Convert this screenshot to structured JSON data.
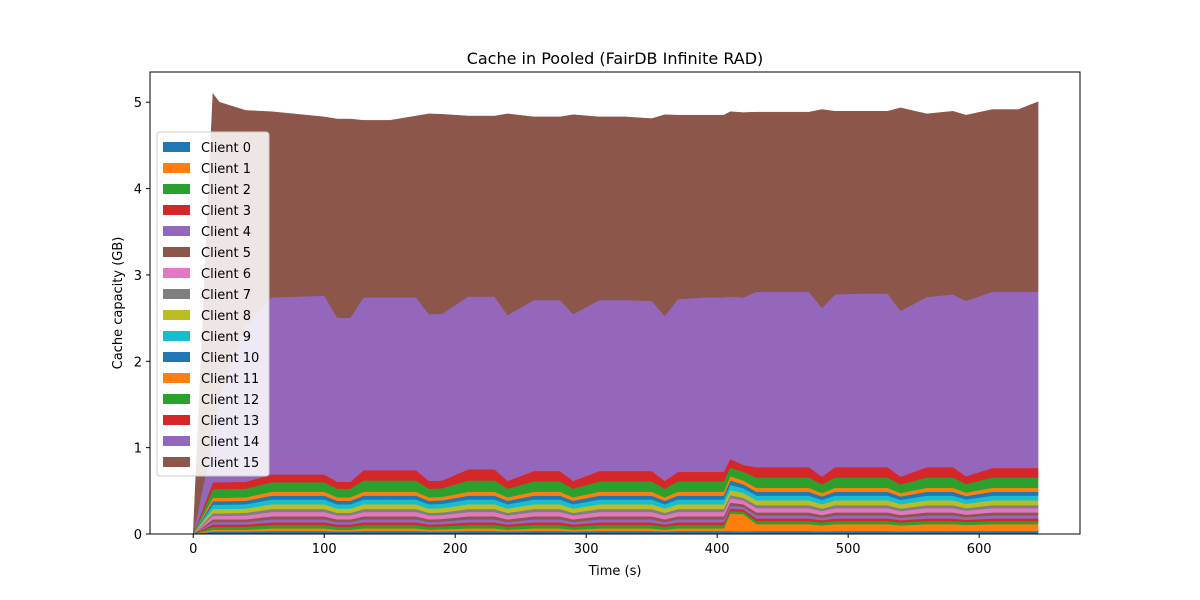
{
  "chart_data": {
    "type": "area",
    "stacked": true,
    "title": "Cache in  Pooled (FairDB Infinite RAD)",
    "xlabel": "Time (s)",
    "ylabel": "Cache capacity (GB)",
    "xlim": [
      -33,
      677
    ],
    "ylim": [
      0,
      5.35
    ],
    "xticks": [
      0,
      100,
      200,
      300,
      400,
      500,
      600
    ],
    "yticks": [
      0,
      1,
      2,
      3,
      4,
      5
    ],
    "grid": false,
    "legend_position": "upper-left",
    "x": [
      0,
      15,
      20,
      40,
      60,
      100,
      110,
      120,
      130,
      150,
      170,
      180,
      190,
      210,
      230,
      240,
      260,
      280,
      290,
      310,
      330,
      350,
      360,
      370,
      390,
      405,
      410,
      420,
      430,
      450,
      470,
      480,
      490,
      510,
      530,
      540,
      560,
      580,
      590,
      610,
      630,
      645
    ],
    "series": [
      {
        "name": "Client 0",
        "color": "#1f77b4",
        "values": [
          0,
          0.03,
          0.03,
          0.03,
          0.035,
          0.035,
          0.03,
          0.03,
          0.035,
          0.035,
          0.035,
          0.03,
          0.03,
          0.035,
          0.035,
          0.03,
          0.035,
          0.035,
          0.03,
          0.035,
          0.035,
          0.035,
          0.03,
          0.035,
          0.035,
          0.035,
          0.035,
          0.03,
          0.035,
          0.035,
          0.035,
          0.03,
          0.035,
          0.035,
          0.035,
          0.03,
          0.035,
          0.035,
          0.035,
          0.035,
          0.035,
          0.035
        ]
      },
      {
        "name": "Client 1",
        "color": "#ff7f0e",
        "values": [
          0,
          0.02,
          0.02,
          0.02,
          0.03,
          0.03,
          0.02,
          0.02,
          0.03,
          0.03,
          0.03,
          0.02,
          0.025,
          0.03,
          0.03,
          0.02,
          0.03,
          0.03,
          0.02,
          0.03,
          0.03,
          0.03,
          0.02,
          0.03,
          0.03,
          0.03,
          0.2,
          0.2,
          0.08,
          0.08,
          0.08,
          0.07,
          0.08,
          0.08,
          0.08,
          0.07,
          0.08,
          0.08,
          0.07,
          0.08,
          0.08,
          0.08
        ]
      },
      {
        "name": "Client 2",
        "color": "#2ca02c",
        "values": [
          0,
          0.035,
          0.035,
          0.035,
          0.04,
          0.04,
          0.035,
          0.035,
          0.04,
          0.04,
          0.04,
          0.035,
          0.035,
          0.04,
          0.04,
          0.035,
          0.04,
          0.04,
          0.035,
          0.04,
          0.04,
          0.04,
          0.035,
          0.04,
          0.04,
          0.04,
          0.03,
          0.03,
          0.035,
          0.035,
          0.035,
          0.035,
          0.035,
          0.035,
          0.035,
          0.035,
          0.035,
          0.035,
          0.035,
          0.035,
          0.035,
          0.035
        ]
      },
      {
        "name": "Client 3",
        "color": "#d62728",
        "values": [
          0,
          0.025,
          0.025,
          0.025,
          0.03,
          0.03,
          0.025,
          0.025,
          0.03,
          0.03,
          0.03,
          0.025,
          0.025,
          0.03,
          0.03,
          0.025,
          0.03,
          0.03,
          0.025,
          0.03,
          0.03,
          0.03,
          0.025,
          0.03,
          0.03,
          0.03,
          0.03,
          0.025,
          0.03,
          0.03,
          0.03,
          0.025,
          0.03,
          0.03,
          0.03,
          0.025,
          0.03,
          0.03,
          0.025,
          0.03,
          0.03,
          0.03
        ]
      },
      {
        "name": "Client 4",
        "color": "#9467bd",
        "values": [
          0,
          0.03,
          0.03,
          0.03,
          0.035,
          0.035,
          0.03,
          0.03,
          0.035,
          0.035,
          0.035,
          0.03,
          0.03,
          0.035,
          0.035,
          0.03,
          0.035,
          0.035,
          0.03,
          0.035,
          0.035,
          0.035,
          0.03,
          0.035,
          0.035,
          0.035,
          0.035,
          0.03,
          0.035,
          0.035,
          0.035,
          0.03,
          0.035,
          0.035,
          0.035,
          0.03,
          0.035,
          0.035,
          0.03,
          0.035,
          0.035,
          0.035
        ]
      },
      {
        "name": "Client 5",
        "color": "#8c564b",
        "values": [
          0,
          0.03,
          0.03,
          0.03,
          0.035,
          0.035,
          0.03,
          0.03,
          0.035,
          0.035,
          0.035,
          0.03,
          0.03,
          0.035,
          0.035,
          0.03,
          0.035,
          0.035,
          0.03,
          0.035,
          0.035,
          0.035,
          0.03,
          0.035,
          0.035,
          0.035,
          0.035,
          0.03,
          0.035,
          0.035,
          0.035,
          0.03,
          0.035,
          0.035,
          0.035,
          0.03,
          0.035,
          0.035,
          0.03,
          0.035,
          0.035,
          0.035
        ]
      },
      {
        "name": "Client 6",
        "color": "#e377c2",
        "values": [
          0,
          0.04,
          0.04,
          0.045,
          0.05,
          0.05,
          0.045,
          0.045,
          0.05,
          0.05,
          0.05,
          0.045,
          0.045,
          0.05,
          0.05,
          0.045,
          0.05,
          0.05,
          0.045,
          0.05,
          0.05,
          0.05,
          0.045,
          0.05,
          0.05,
          0.05,
          0.05,
          0.045,
          0.05,
          0.05,
          0.05,
          0.045,
          0.05,
          0.05,
          0.05,
          0.045,
          0.05,
          0.05,
          0.045,
          0.05,
          0.05,
          0.05
        ]
      },
      {
        "name": "Client 7",
        "color": "#7f7f7f",
        "values": [
          0,
          0.03,
          0.03,
          0.03,
          0.035,
          0.035,
          0.03,
          0.03,
          0.035,
          0.035,
          0.035,
          0.03,
          0.03,
          0.035,
          0.035,
          0.03,
          0.035,
          0.035,
          0.03,
          0.035,
          0.035,
          0.035,
          0.03,
          0.035,
          0.035,
          0.035,
          0.035,
          0.03,
          0.035,
          0.035,
          0.035,
          0.03,
          0.035,
          0.035,
          0.035,
          0.03,
          0.035,
          0.035,
          0.03,
          0.035,
          0.035,
          0.035
        ]
      },
      {
        "name": "Client 8",
        "color": "#bcbd22",
        "values": [
          0,
          0.05,
          0.05,
          0.05,
          0.055,
          0.055,
          0.05,
          0.05,
          0.055,
          0.055,
          0.055,
          0.05,
          0.05,
          0.055,
          0.055,
          0.05,
          0.055,
          0.055,
          0.05,
          0.055,
          0.055,
          0.055,
          0.05,
          0.055,
          0.055,
          0.055,
          0.06,
          0.055,
          0.055,
          0.055,
          0.055,
          0.05,
          0.055,
          0.055,
          0.055,
          0.05,
          0.055,
          0.055,
          0.05,
          0.055,
          0.055,
          0.055
        ]
      },
      {
        "name": "Client 9",
        "color": "#17becf",
        "values": [
          0,
          0.05,
          0.05,
          0.05,
          0.055,
          0.055,
          0.05,
          0.05,
          0.055,
          0.055,
          0.055,
          0.05,
          0.05,
          0.055,
          0.055,
          0.05,
          0.055,
          0.055,
          0.05,
          0.055,
          0.055,
          0.055,
          0.05,
          0.055,
          0.055,
          0.055,
          0.06,
          0.055,
          0.055,
          0.055,
          0.055,
          0.05,
          0.055,
          0.055,
          0.055,
          0.05,
          0.055,
          0.055,
          0.05,
          0.055,
          0.055,
          0.055
        ]
      },
      {
        "name": "Client 10",
        "color": "#1f77b4",
        "values": [
          0,
          0.04,
          0.04,
          0.04,
          0.045,
          0.045,
          0.04,
          0.04,
          0.045,
          0.045,
          0.045,
          0.04,
          0.04,
          0.045,
          0.045,
          0.04,
          0.045,
          0.045,
          0.04,
          0.045,
          0.045,
          0.045,
          0.04,
          0.045,
          0.045,
          0.045,
          0.05,
          0.045,
          0.045,
          0.045,
          0.045,
          0.04,
          0.045,
          0.045,
          0.045,
          0.04,
          0.045,
          0.045,
          0.04,
          0.045,
          0.045,
          0.045
        ]
      },
      {
        "name": "Client 11",
        "color": "#ff7f0e",
        "values": [
          0,
          0.04,
          0.04,
          0.04,
          0.045,
          0.045,
          0.04,
          0.04,
          0.045,
          0.045,
          0.045,
          0.04,
          0.04,
          0.045,
          0.045,
          0.04,
          0.045,
          0.045,
          0.04,
          0.045,
          0.045,
          0.045,
          0.04,
          0.045,
          0.045,
          0.045,
          0.05,
          0.045,
          0.045,
          0.045,
          0.045,
          0.04,
          0.045,
          0.045,
          0.045,
          0.04,
          0.045,
          0.045,
          0.04,
          0.045,
          0.045,
          0.045
        ]
      },
      {
        "name": "Client 12",
        "color": "#2ca02c",
        "values": [
          0,
          0.1,
          0.1,
          0.1,
          0.11,
          0.11,
          0.1,
          0.1,
          0.13,
          0.13,
          0.13,
          0.1,
          0.1,
          0.13,
          0.13,
          0.1,
          0.12,
          0.12,
          0.1,
          0.12,
          0.12,
          0.12,
          0.1,
          0.12,
          0.12,
          0.12,
          0.1,
          0.1,
          0.12,
          0.12,
          0.12,
          0.1,
          0.12,
          0.12,
          0.12,
          0.1,
          0.12,
          0.12,
          0.1,
          0.12,
          0.12,
          0.12
        ]
      },
      {
        "name": "Client 13",
        "color": "#d62728",
        "values": [
          0,
          0.08,
          0.08,
          0.08,
          0.09,
          0.09,
          0.08,
          0.08,
          0.12,
          0.12,
          0.12,
          0.09,
          0.09,
          0.13,
          0.13,
          0.09,
          0.12,
          0.12,
          0.09,
          0.12,
          0.12,
          0.12,
          0.09,
          0.11,
          0.11,
          0.11,
          0.1,
          0.08,
          0.12,
          0.12,
          0.12,
          0.09,
          0.12,
          0.12,
          0.12,
          0.09,
          0.12,
          0.12,
          0.09,
          0.11,
          0.11,
          0.11
        ]
      },
      {
        "name": "Client 14",
        "color": "#9467bd",
        "values": [
          0,
          0.5,
          1.0,
          1.8,
          2.05,
          2.07,
          1.9,
          1.9,
          2.0,
          2.0,
          2.0,
          1.93,
          1.93,
          2.0,
          2.0,
          1.92,
          1.98,
          1.98,
          1.93,
          1.98,
          1.98,
          1.97,
          1.91,
          2.0,
          2.02,
          2.02,
          1.88,
          1.94,
          2.03,
          2.03,
          2.03,
          1.95,
          2.0,
          2.01,
          2.01,
          1.92,
          1.97,
          2.0,
          2.03,
          2.04,
          2.04,
          2.04
        ]
      },
      {
        "name": "Client 15",
        "color": "#8c564b",
        "values": [
          0,
          4.0,
          3.4,
          2.5,
          2.15,
          2.07,
          2.3,
          2.3,
          2.05,
          2.05,
          2.1,
          2.32,
          2.31,
          2.09,
          2.09,
          2.33,
          2.12,
          2.12,
          2.31,
          2.12,
          2.12,
          2.11,
          2.33,
          2.13,
          2.11,
          2.11,
          2.14,
          2.14,
          2.08,
          2.08,
          2.08,
          2.3,
          2.12,
          2.11,
          2.11,
          2.35,
          2.12,
          2.12,
          2.15,
          2.11,
          2.11,
          2.2
        ]
      }
    ]
  }
}
